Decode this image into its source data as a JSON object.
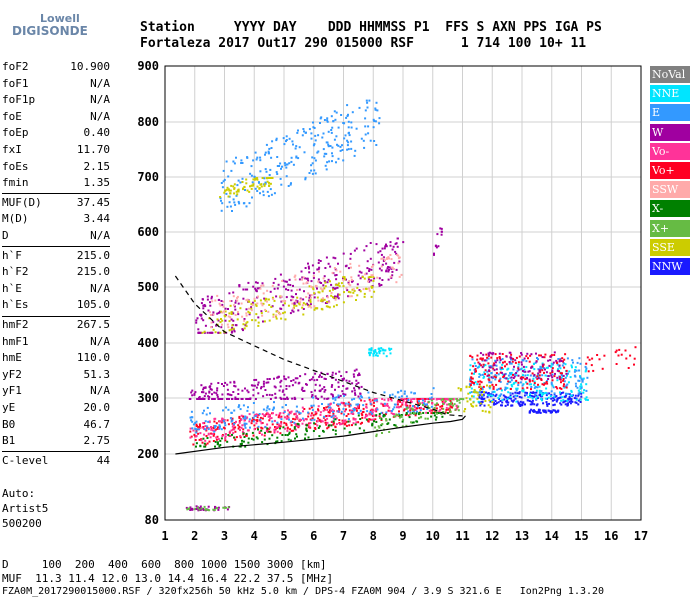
{
  "logo": {
    "line1": "Lowell",
    "line2": "DIGISONDE"
  },
  "header": {
    "row1": "Station     YYYY DAY    DDD HHMMSS P1  FFS S AXN PPS IGA PS",
    "row2": "Fortaleza 2017 Out17 290 015000 RSF      1 714 100 10+ 11"
  },
  "params": [
    {
      "label": "foF2",
      "value": "10.900"
    },
    {
      "label": "foF1",
      "value": "N/A"
    },
    {
      "label": "foF1p",
      "value": "N/A"
    },
    {
      "label": "foE",
      "value": "N/A"
    },
    {
      "label": "foEp",
      "value": "0.40"
    },
    {
      "label": "fxI",
      "value": "11.70"
    },
    {
      "label": "foEs",
      "value": "2.15"
    },
    {
      "label": "fmin",
      "value": "1.35"
    },
    {
      "label": "MUF(D)",
      "value": "37.45"
    },
    {
      "label": "M(D)",
      "value": "3.44"
    },
    {
      "label": "D",
      "value": "N/A"
    },
    {
      "label": "h`F",
      "value": "215.0"
    },
    {
      "label": "h`F2",
      "value": "215.0"
    },
    {
      "label": "h`E",
      "value": "N/A"
    },
    {
      "label": "h`Es",
      "value": "105.0"
    },
    {
      "label": "hmF2",
      "value": "267.5"
    },
    {
      "label": "hmF1",
      "value": "N/A"
    },
    {
      "label": "hmE",
      "value": "110.0"
    },
    {
      "label": "yF2",
      "value": "51.3"
    },
    {
      "label": "yF1",
      "value": "N/A"
    },
    {
      "label": "yE",
      "value": "20.0"
    },
    {
      "label": "B0",
      "value": "46.7"
    },
    {
      "label": "B1",
      "value": "2.75"
    },
    {
      "label": "C-level",
      "value": "44"
    }
  ],
  "autoscaling": {
    "line1": "Auto:",
    "line2": "Artist5",
    "line3": "500200"
  },
  "legend": [
    {
      "label": "NoVal",
      "color": "#808080"
    },
    {
      "label": "NNE",
      "color": "#00e5ff"
    },
    {
      "label": "E",
      "color": "#3399ff"
    },
    {
      "label": "W",
      "color": "#a000a0"
    },
    {
      "label": "Vo-",
      "color": "#ff3399"
    },
    {
      "label": "Vo+",
      "color": "#ff0022"
    },
    {
      "label": "SSW",
      "color": "#ffaaaa"
    },
    {
      "label": "X-",
      "color": "#008000"
    },
    {
      "label": "X+",
      "color": "#66bb44"
    },
    {
      "label": "SSE",
      "color": "#cccc00"
    },
    {
      "label": "NNW",
      "color": "#1a1aff"
    }
  ],
  "footer": {
    "d_row": "D     100  200  400  600  800 1000 1500 3000 [km]",
    "muf_row": "MUF  11.3 11.4 12.0 13.0 14.4 16.4 22.2 37.5 [MHz]",
    "file_row": "FZA0M_2017290015000.RSF / 320fx256h 50 kHz 5.0 km / DPS-4 FZA0M 904 / 3.9 S 321.6 E   Ion2Png 1.3.20"
  },
  "chart_data": {
    "type": "scatter",
    "xlim": [
      1,
      17
    ],
    "ylim": [
      80,
      900
    ],
    "xticks": [
      "1",
      "2",
      "3",
      "4",
      "5",
      "6",
      "7",
      "8",
      "9",
      "10",
      "11",
      "12",
      "13",
      "14",
      "15",
      "16",
      "17"
    ],
    "yticks": [
      "80",
      "200",
      "300",
      "400",
      "500",
      "600",
      "700",
      "800",
      "900"
    ],
    "grid": true,
    "legend_position": "right",
    "clusters": [
      {
        "color": "#3399ff",
        "x": [
          2.8,
          8.2
        ],
        "y": [
          640,
          840
        ],
        "n": 260,
        "trend": [
          675,
          810
        ]
      },
      {
        "color": "#cccc00",
        "x": [
          2.8,
          4.6
        ],
        "y": [
          650,
          700
        ],
        "n": 70,
        "trend": [
          670,
          700
        ]
      },
      {
        "color": "#a000a0",
        "x": [
          2.0,
          9.0
        ],
        "y": [
          420,
          590
        ],
        "n": 320,
        "trend": [
          440,
          560
        ]
      },
      {
        "color": "#cccc00",
        "x": [
          2.2,
          8.0
        ],
        "y": [
          420,
          520
        ],
        "n": 160,
        "trend": [
          430,
          510
        ]
      },
      {
        "color": "#ffaaaa",
        "x": [
          2.4,
          9.0
        ],
        "y": [
          430,
          560
        ],
        "n": 150,
        "trend": [
          450,
          540
        ]
      },
      {
        "color": "#a000a0",
        "x": [
          1.8,
          7.6
        ],
        "y": [
          300,
          400
        ],
        "n": 260,
        "trend": [
          300,
          330
        ]
      },
      {
        "color": "#ff0022",
        "x": [
          1.8,
          10.8
        ],
        "y": [
          215,
          300
        ],
        "n": 380,
        "trend": [
          235,
          300
        ]
      },
      {
        "color": "#ff3399",
        "x": [
          1.8,
          10.8
        ],
        "y": [
          220,
          300
        ],
        "n": 300,
        "trend": [
          240,
          300
        ]
      },
      {
        "color": "#3399ff",
        "x": [
          1.8,
          10.0
        ],
        "y": [
          230,
          320
        ],
        "n": 200,
        "trend": [
          260,
          300
        ]
      },
      {
        "color": "#008000",
        "x": [
          2.0,
          10.5
        ],
        "y": [
          215,
          275
        ],
        "n": 150,
        "trend": [
          215,
          280
        ]
      },
      {
        "color": "#66bb44",
        "x": [
          8.0,
          11.0
        ],
        "y": [
          230,
          300
        ],
        "n": 80,
        "trend": [
          250,
          300
        ]
      },
      {
        "color": "#00e5ff",
        "x": [
          7.8,
          8.6
        ],
        "y": [
          370,
          400
        ],
        "n": 40,
        "trend": [
          385,
          385
        ]
      },
      {
        "color": "#1a1aff",
        "x": [
          11.5,
          15.0
        ],
        "y": [
          280,
          330
        ],
        "n": 200,
        "trend": [
          300,
          300
        ]
      },
      {
        "color": "#00e5ff",
        "x": [
          11.2,
          15.2
        ],
        "y": [
          290,
          430
        ],
        "n": 180,
        "trend": [
          330,
          330
        ]
      },
      {
        "color": "#3399ff",
        "x": [
          11.2,
          15.2
        ],
        "y": [
          290,
          430
        ],
        "n": 160,
        "trend": [
          340,
          340
        ]
      },
      {
        "color": "#ff0022",
        "x": [
          11.2,
          14.5
        ],
        "y": [
          300,
          430
        ],
        "n": 160,
        "trend": [
          350,
          350
        ]
      },
      {
        "color": "#a000a0",
        "x": [
          11.5,
          14.5
        ],
        "y": [
          320,
          420
        ],
        "n": 90,
        "trend": [
          360,
          360
        ]
      },
      {
        "color": "#cccc00",
        "x": [
          10.8,
          12.0
        ],
        "y": [
          250,
          350
        ],
        "n": 40,
        "trend": [
          300,
          300
        ]
      },
      {
        "color": "#ff0022",
        "x": [
          15.0,
          17.0
        ],
        "y": [
          330,
          420
        ],
        "n": 25,
        "trend": [
          360,
          380
        ]
      },
      {
        "color": "#1a1aff",
        "x": [
          13.2,
          14.2
        ],
        "y": [
          272,
          284
        ],
        "n": 45,
        "trend": [
          278,
          278
        ]
      },
      {
        "color": "#a000a0",
        "x": [
          1.7,
          3.2
        ],
        "y": [
          95,
          110
        ],
        "n": 35,
        "trend": [
          103,
          103
        ]
      },
      {
        "color": "#66bb44",
        "x": [
          1.7,
          3.2
        ],
        "y": [
          95,
          110
        ],
        "n": 20,
        "trend": [
          103,
          103
        ]
      },
      {
        "color": "#a000a0",
        "x": [
          10.0,
          10.3
        ],
        "y": [
          560,
          620
        ],
        "n": 12,
        "trend": [
          570,
          610
        ]
      }
    ],
    "curves": [
      {
        "style": "solid",
        "x": [
          1.35,
          3,
          5,
          7,
          8,
          9,
          10,
          10.6,
          11.0,
          11.1
        ],
        "y": [
          200,
          212,
          221,
          232,
          240,
          248,
          255,
          258,
          262,
          268
        ]
      },
      {
        "style": "dashed",
        "x": [
          1.35,
          2,
          3,
          4,
          5,
          6,
          7,
          8,
          9,
          10,
          10.5,
          11.0
        ],
        "y": [
          520,
          470,
          420,
          395,
          370,
          350,
          330,
          310,
          295,
          280,
          270,
          268
        ]
      }
    ]
  }
}
